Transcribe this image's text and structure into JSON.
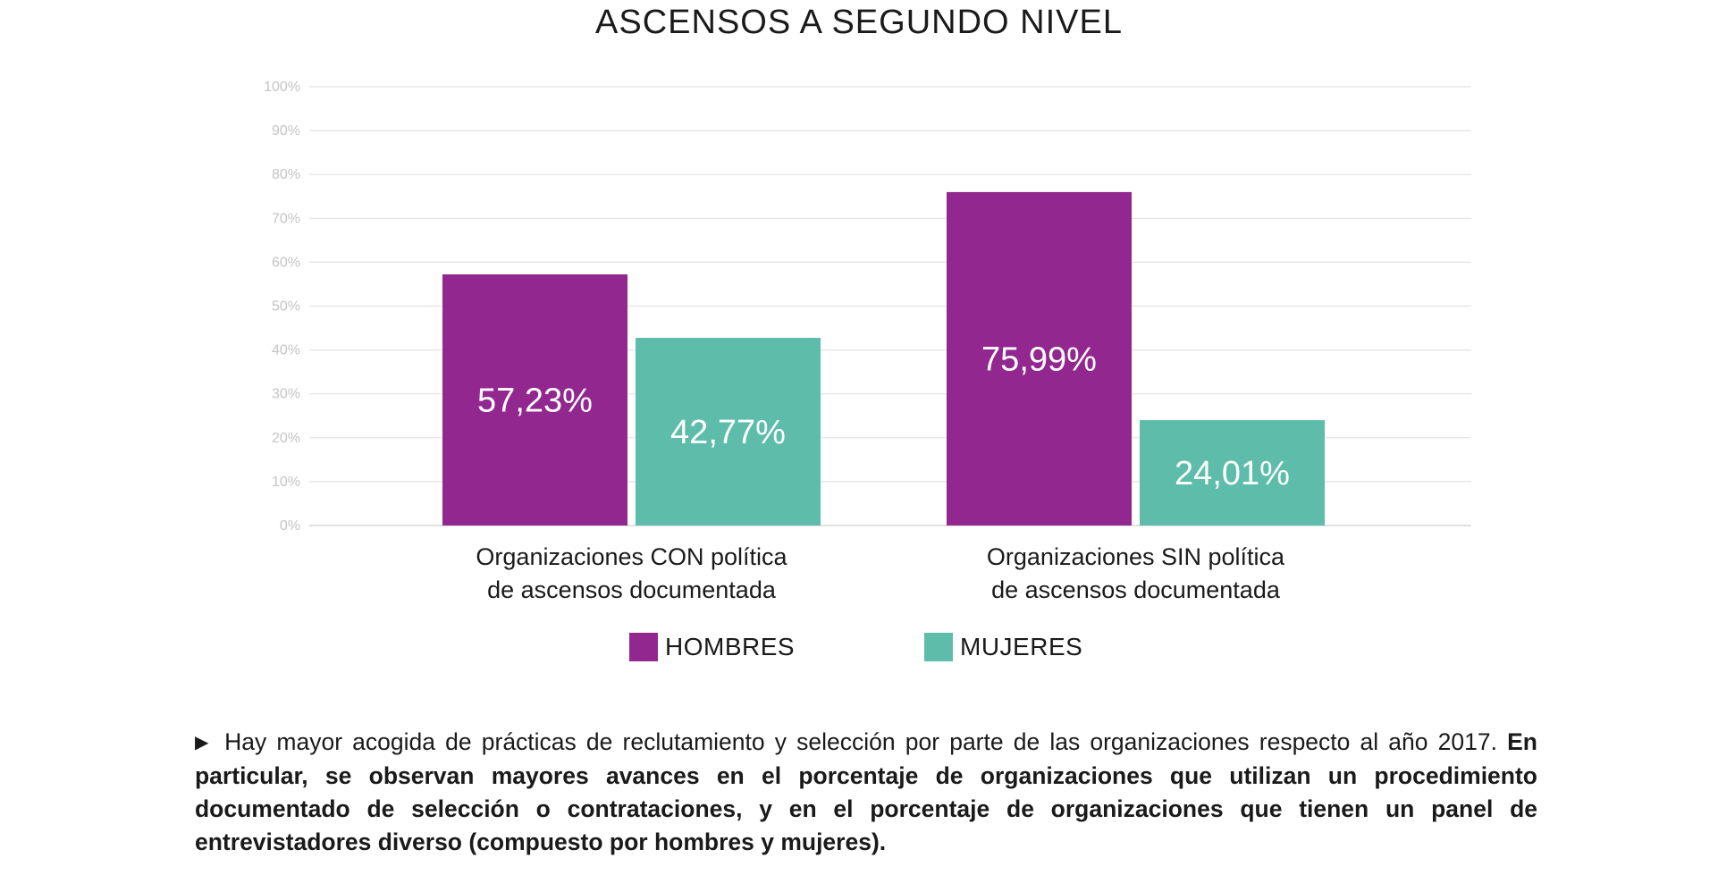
{
  "chart_data": {
    "type": "bar",
    "title": "ASCENSOS A SEGUNDO NIVEL",
    "categories": [
      [
        "Organizaciones CON política",
        "de ascensos documentada"
      ],
      [
        "Organizaciones SIN política",
        "de ascensos documentada"
      ]
    ],
    "series": [
      {
        "name": "HOMBRES",
        "color": "#922790",
        "values": [
          57.23,
          75.99
        ],
        "labels": [
          "57,23%",
          "75,99%"
        ]
      },
      {
        "name": "MUJERES",
        "color": "#5dbcaa",
        "values": [
          42.77,
          24.01
        ],
        "labels": [
          "42,77%",
          "24,01%"
        ]
      }
    ],
    "yticks": [
      "0%",
      "10%",
      "20%",
      "30%",
      "40%",
      "50%",
      "60%",
      "70%",
      "80%",
      "90%",
      "100%"
    ],
    "ylim": [
      0,
      100
    ],
    "grid": true,
    "legend": "bottom",
    "xlabel": "",
    "ylabel": ""
  },
  "note": {
    "bullet": "▶",
    "plain": "Hay mayor acogida de prácticas de reclutamiento y selección por parte de las organizaciones respecto al año 2017.",
    "bold": "En particular, se observan mayores avances en el porcentaje de organizaciones que utilizan un procedimiento documentado de selección o contrataciones, y en el porcentaje de organizaciones que tienen un panel de entrevistadores diverso (compuesto por hombres y mujeres)."
  }
}
